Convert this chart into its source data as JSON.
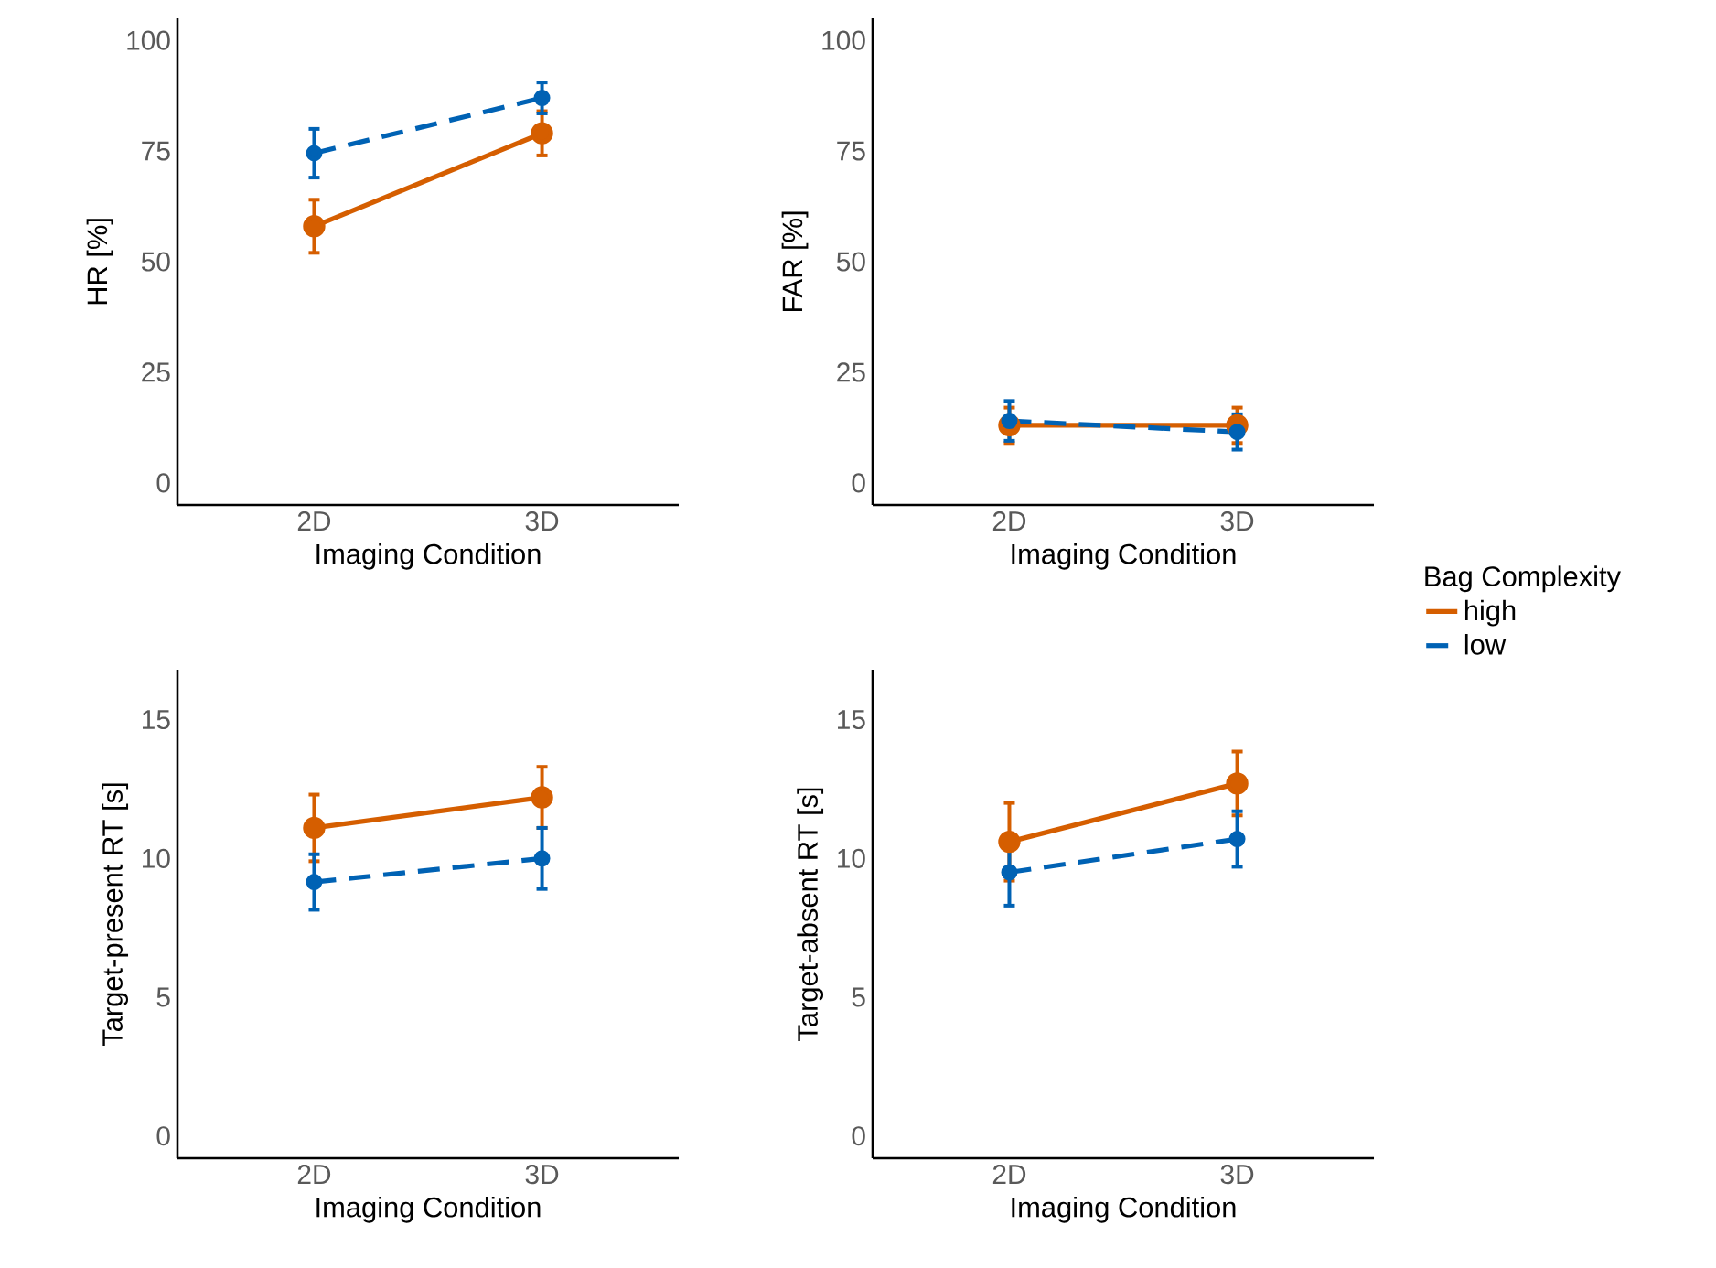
{
  "chart_data": [
    {
      "type": "line",
      "categories": [
        "2D",
        "3D"
      ],
      "xlabel": "Imaging Condition",
      "ylabel": "HR [%]",
      "ylim": [
        -5,
        105
      ],
      "yticks": [
        0,
        25,
        50,
        75,
        100
      ],
      "marker": "circle",
      "series": [
        {
          "color": "#d55e00",
          "line_style": "solid",
          "values": [
            58,
            79
          ],
          "errors": [
            6,
            5
          ]
        },
        {
          "color": "#0062b4",
          "line_style": "dashed",
          "values": [
            74.5,
            87
          ],
          "errors": [
            5.5,
            3.5
          ]
        }
      ]
    },
    {
      "type": "line",
      "categories": [
        "2D",
        "3D"
      ],
      "xlabel": "Imaging Condition",
      "ylabel": "FAR [%]",
      "ylim": [
        -5,
        105
      ],
      "yticks": [
        0,
        25,
        50,
        75,
        100
      ],
      "marker": "circle",
      "legend": "right",
      "legend_title": "Bag Complexity",
      "series": [
        {
          "name": "high",
          "color": "#d55e00",
          "line_style": "solid",
          "values": [
            13,
            13
          ],
          "errors": [
            4,
            4
          ]
        },
        {
          "name": "low",
          "color": "#0062b4",
          "line_style": "dashed",
          "values": [
            14,
            11.5
          ],
          "errors": [
            4.5,
            4
          ]
        }
      ]
    },
    {
      "type": "line",
      "categories": [
        "2D",
        "3D"
      ],
      "xlabel": "Imaging Condition",
      "ylabel": "Target-present RT [s]",
      "ylim": [
        -0.8,
        16.8
      ],
      "yticks": [
        0,
        5,
        10,
        15
      ],
      "marker": "circle",
      "series": [
        {
          "color": "#d55e00",
          "line_style": "solid",
          "values": [
            11.1,
            12.2
          ],
          "errors": [
            1.2,
            1.1
          ]
        },
        {
          "color": "#0062b4",
          "line_style": "dashed",
          "values": [
            9.15,
            10
          ],
          "errors": [
            1,
            1.1
          ]
        }
      ]
    },
    {
      "type": "line",
      "categories": [
        "2D",
        "3D"
      ],
      "xlabel": "Imaging Condition",
      "ylabel": "Target-absent RT [s]",
      "ylim": [
        -0.8,
        16.8
      ],
      "yticks": [
        0,
        5,
        10,
        15
      ],
      "marker": "circle",
      "series": [
        {
          "color": "#d55e00",
          "line_style": "solid",
          "values": [
            10.6,
            12.7
          ],
          "errors": [
            1.4,
            1.15
          ]
        },
        {
          "color": "#0062b4",
          "line_style": "dashed",
          "values": [
            9.5,
            10.7
          ],
          "errors": [
            1.2,
            1
          ]
        }
      ]
    }
  ]
}
